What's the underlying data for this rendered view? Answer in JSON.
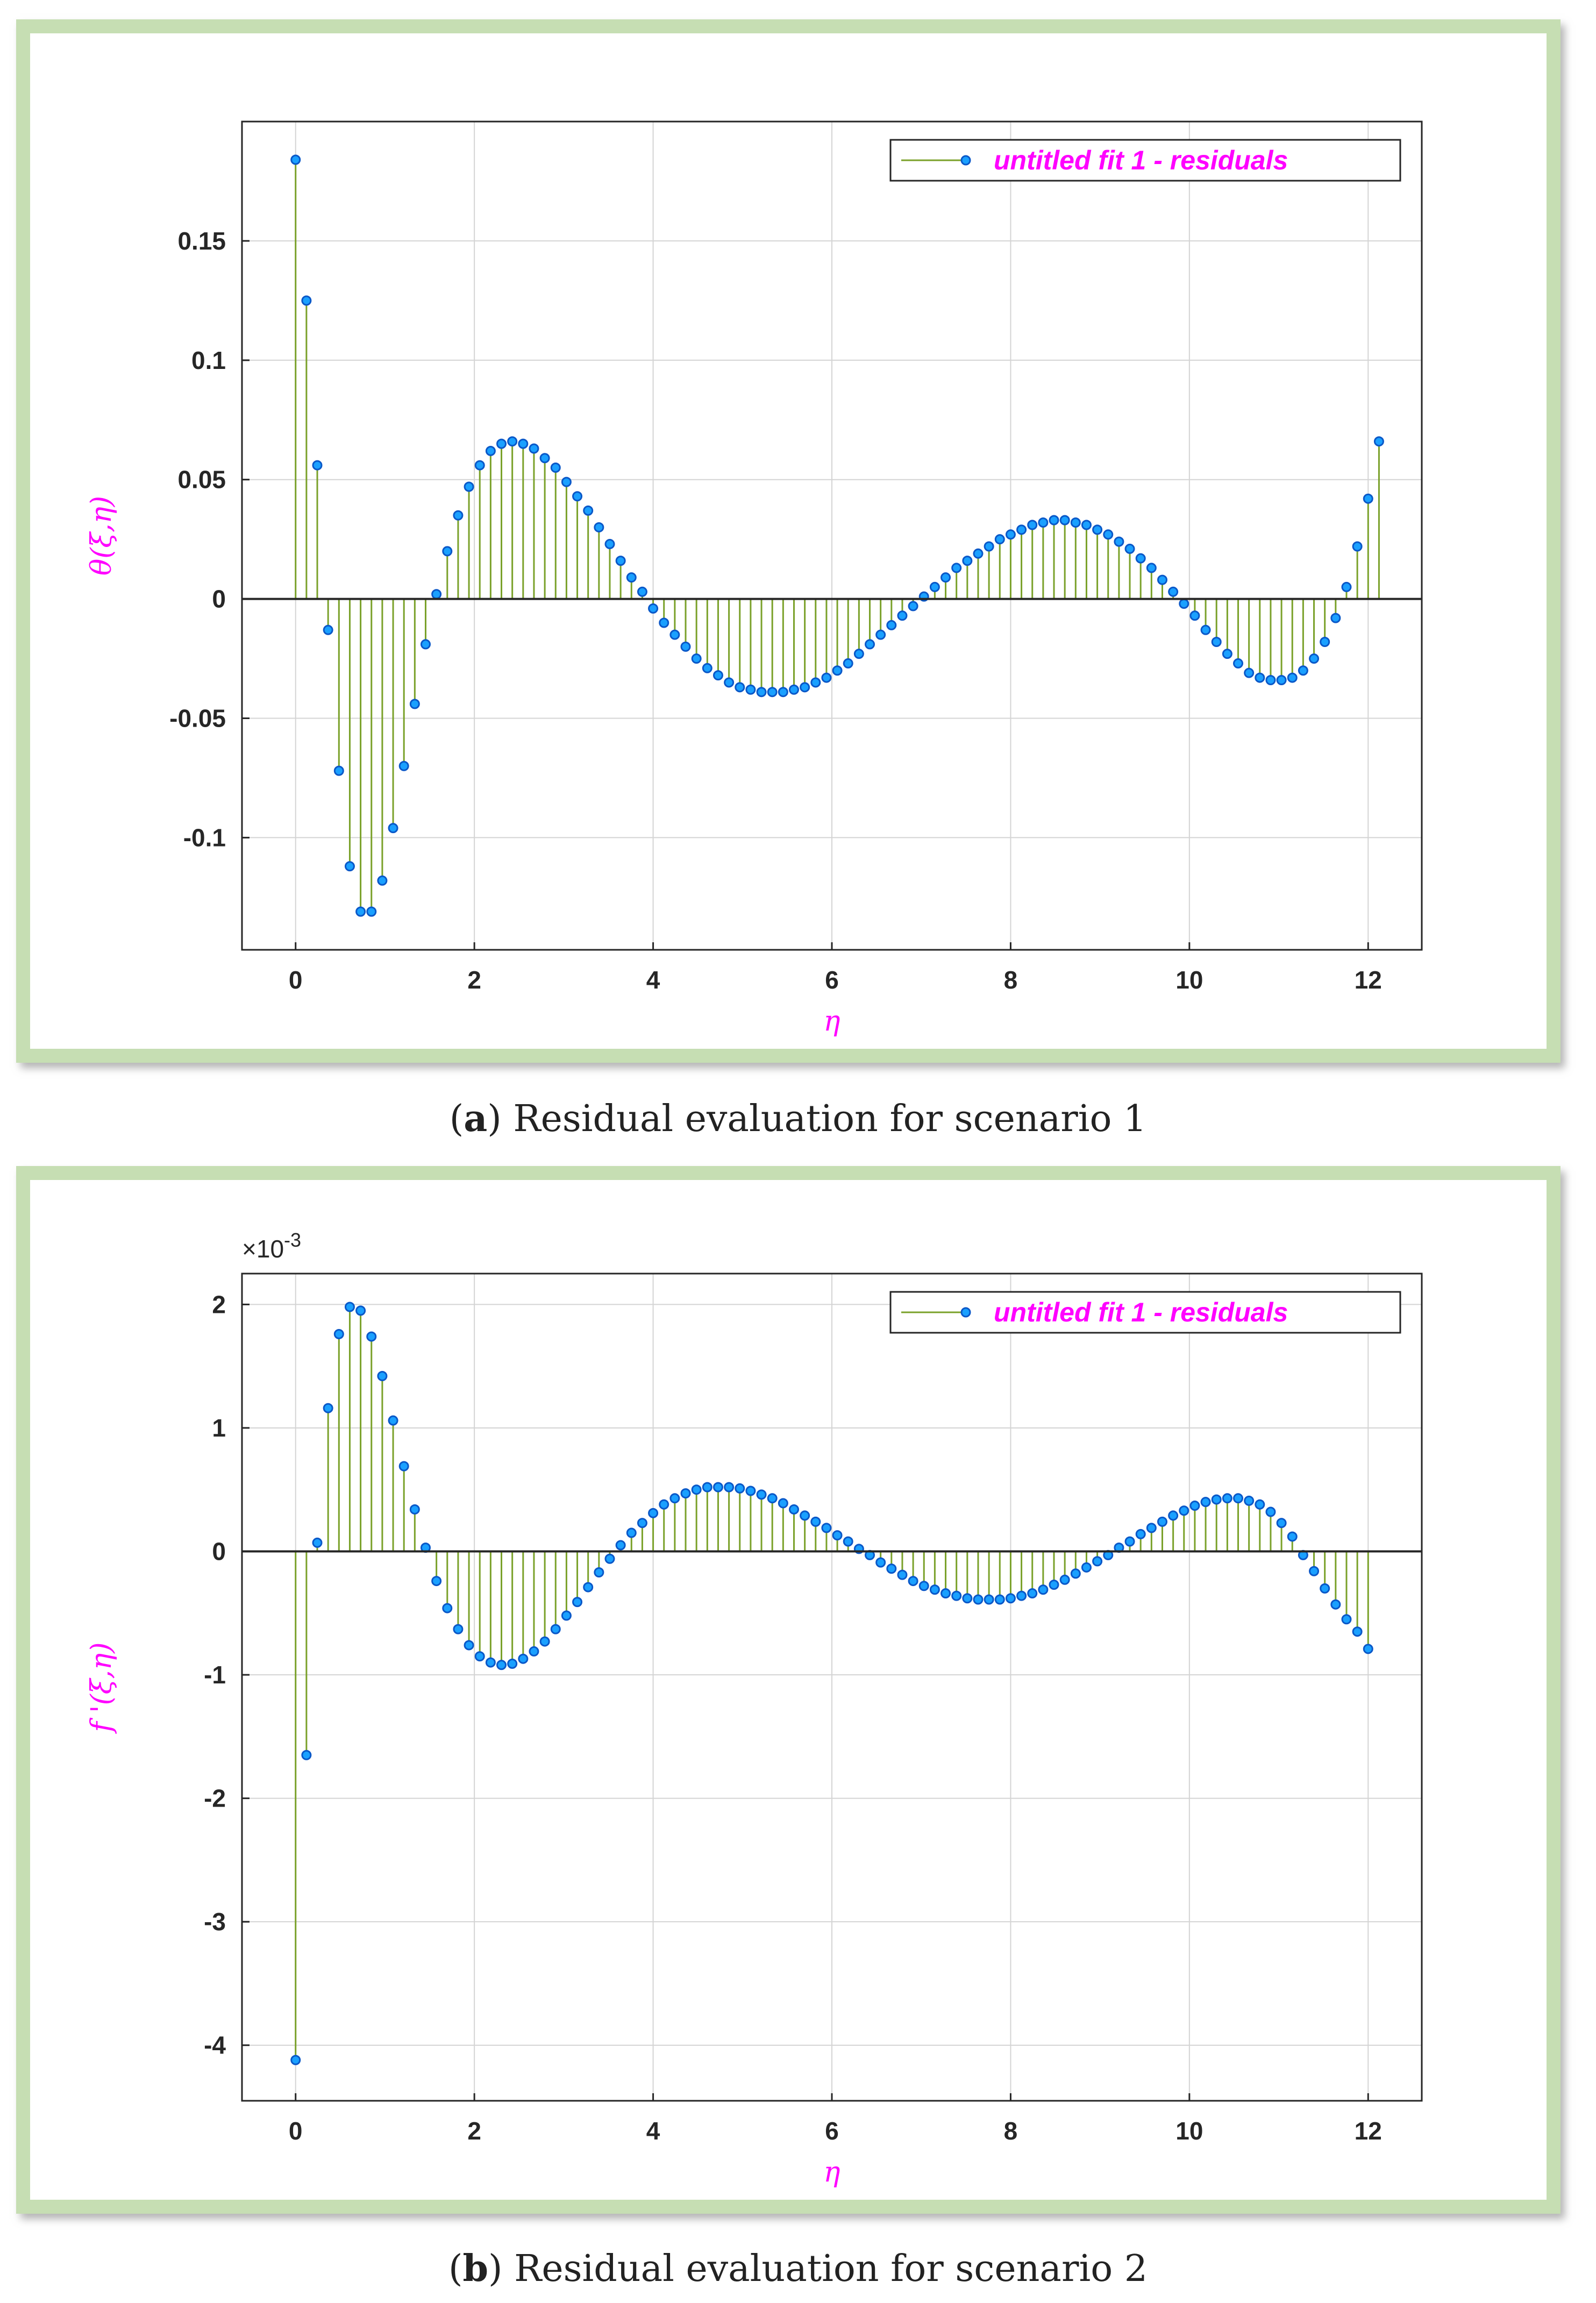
{
  "panels": [
    {
      "caption_letter": "a",
      "caption_text": ") Residual evaluation for scenario 1",
      "caption_open": "(",
      "chart_data": {
        "type": "stem",
        "series_name": "untitled fit 1 - residuals",
        "xlabel": "η",
        "ylabel": "θ(ξ,η)",
        "xlim": [
          -0.6,
          12.6
        ],
        "ylim": [
          -0.147,
          0.2
        ],
        "xticks": [
          0,
          2,
          4,
          6,
          8,
          10,
          12
        ],
        "xtick_labels": [
          "0",
          "2",
          "4",
          "6",
          "8",
          "10",
          "12"
        ],
        "yticks": [
          -0.1,
          -0.05,
          0,
          0.05,
          0.1,
          0.15
        ],
        "ytick_labels": [
          "-0.1",
          "-0.05",
          "0",
          "0.05",
          "0.1",
          "0.15"
        ],
        "exponent_label": "",
        "x_start": 0,
        "x_step": 0.1212121,
        "n_points": 100,
        "values": [
          0.184,
          0.125,
          0.056,
          -0.013,
          -0.072,
          -0.112,
          -0.131,
          -0.131,
          -0.118,
          -0.096,
          -0.07,
          -0.044,
          -0.019,
          0.002,
          0.02,
          0.035,
          0.047,
          0.056,
          0.062,
          0.065,
          0.066,
          0.065,
          0.063,
          0.059,
          0.055,
          0.049,
          0.043,
          0.037,
          0.03,
          0.023,
          0.016,
          0.009,
          0.003,
          -0.004,
          -0.01,
          -0.015,
          -0.02,
          -0.025,
          -0.029,
          -0.032,
          -0.035,
          -0.037,
          -0.038,
          -0.039,
          -0.039,
          -0.039,
          -0.038,
          -0.037,
          -0.035,
          -0.033,
          -0.03,
          -0.027,
          -0.023,
          -0.019,
          -0.015,
          -0.011,
          -0.007,
          -0.003,
          0.001,
          0.005,
          0.009,
          0.013,
          0.016,
          0.019,
          0.022,
          0.025,
          0.027,
          0.029,
          0.031,
          0.032,
          0.033,
          0.033,
          0.032,
          0.031,
          0.029,
          0.027,
          0.024,
          0.021,
          0.017,
          0.013,
          0.008,
          0.003,
          -0.002,
          -0.007,
          -0.013,
          -0.018,
          -0.023,
          -0.027,
          -0.031,
          -0.033,
          -0.034,
          -0.034,
          -0.033,
          -0.03,
          -0.025,
          -0.018,
          -0.008,
          0.005,
          0.022,
          0.042,
          0.066
        ]
      }
    },
    {
      "caption_letter": "b",
      "caption_text": ") Residual evaluation for scenario 2",
      "caption_open": "(",
      "chart_data": {
        "type": "stem",
        "series_name": "untitled fit 1 - residuals",
        "xlabel": "η",
        "ylabel": "f '(ξ,η)",
        "xlim": [
          -0.6,
          12.6
        ],
        "ylim": [
          -4.45,
          2.25
        ],
        "xticks": [
          0,
          2,
          4,
          6,
          8,
          10,
          12
        ],
        "xtick_labels": [
          "0",
          "2",
          "4",
          "6",
          "8",
          "10",
          "12"
        ],
        "yticks": [
          -4,
          -3,
          -2,
          -1,
          0,
          1,
          2
        ],
        "ytick_labels": [
          "-4",
          "-3",
          "-2",
          "-1",
          "0",
          "1",
          "2"
        ],
        "exponent_label": "×10",
        "exponent_power": "-3",
        "x_start": 0,
        "x_step": 0.1212121,
        "n_points": 100,
        "values": [
          -4.12,
          -1.65,
          0.07,
          1.16,
          1.76,
          1.98,
          1.95,
          1.74,
          1.42,
          1.06,
          0.69,
          0.34,
          0.03,
          -0.24,
          -0.46,
          -0.63,
          -0.76,
          -0.85,
          -0.9,
          -0.92,
          -0.91,
          -0.87,
          -0.81,
          -0.73,
          -0.63,
          -0.52,
          -0.41,
          -0.29,
          -0.17,
          -0.06,
          0.05,
          0.15,
          0.23,
          0.31,
          0.38,
          0.43,
          0.47,
          0.5,
          0.52,
          0.52,
          0.52,
          0.51,
          0.49,
          0.46,
          0.43,
          0.39,
          0.34,
          0.29,
          0.24,
          0.19,
          0.13,
          0.08,
          0.02,
          -0.03,
          -0.09,
          -0.14,
          -0.19,
          -0.24,
          -0.28,
          -0.31,
          -0.34,
          -0.36,
          -0.38,
          -0.39,
          -0.39,
          -0.39,
          -0.38,
          -0.36,
          -0.34,
          -0.31,
          -0.27,
          -0.23,
          -0.18,
          -0.13,
          -0.08,
          -0.03,
          0.03,
          0.08,
          0.14,
          0.19,
          0.24,
          0.29,
          0.33,
          0.37,
          0.4,
          0.42,
          0.43,
          0.43,
          0.41,
          0.38,
          0.32,
          0.23,
          0.12,
          -0.03,
          -0.16,
          -0.3,
          -0.43,
          -0.55,
          -0.65,
          -0.79
        ]
      }
    }
  ],
  "colors": {
    "stem": "#7aa12a",
    "marker_fill": "#1aa0ff",
    "marker_edge": "#0a58c8",
    "label": "#ff00ff",
    "grid": "#d4d4d4",
    "axis": "#262626"
  }
}
